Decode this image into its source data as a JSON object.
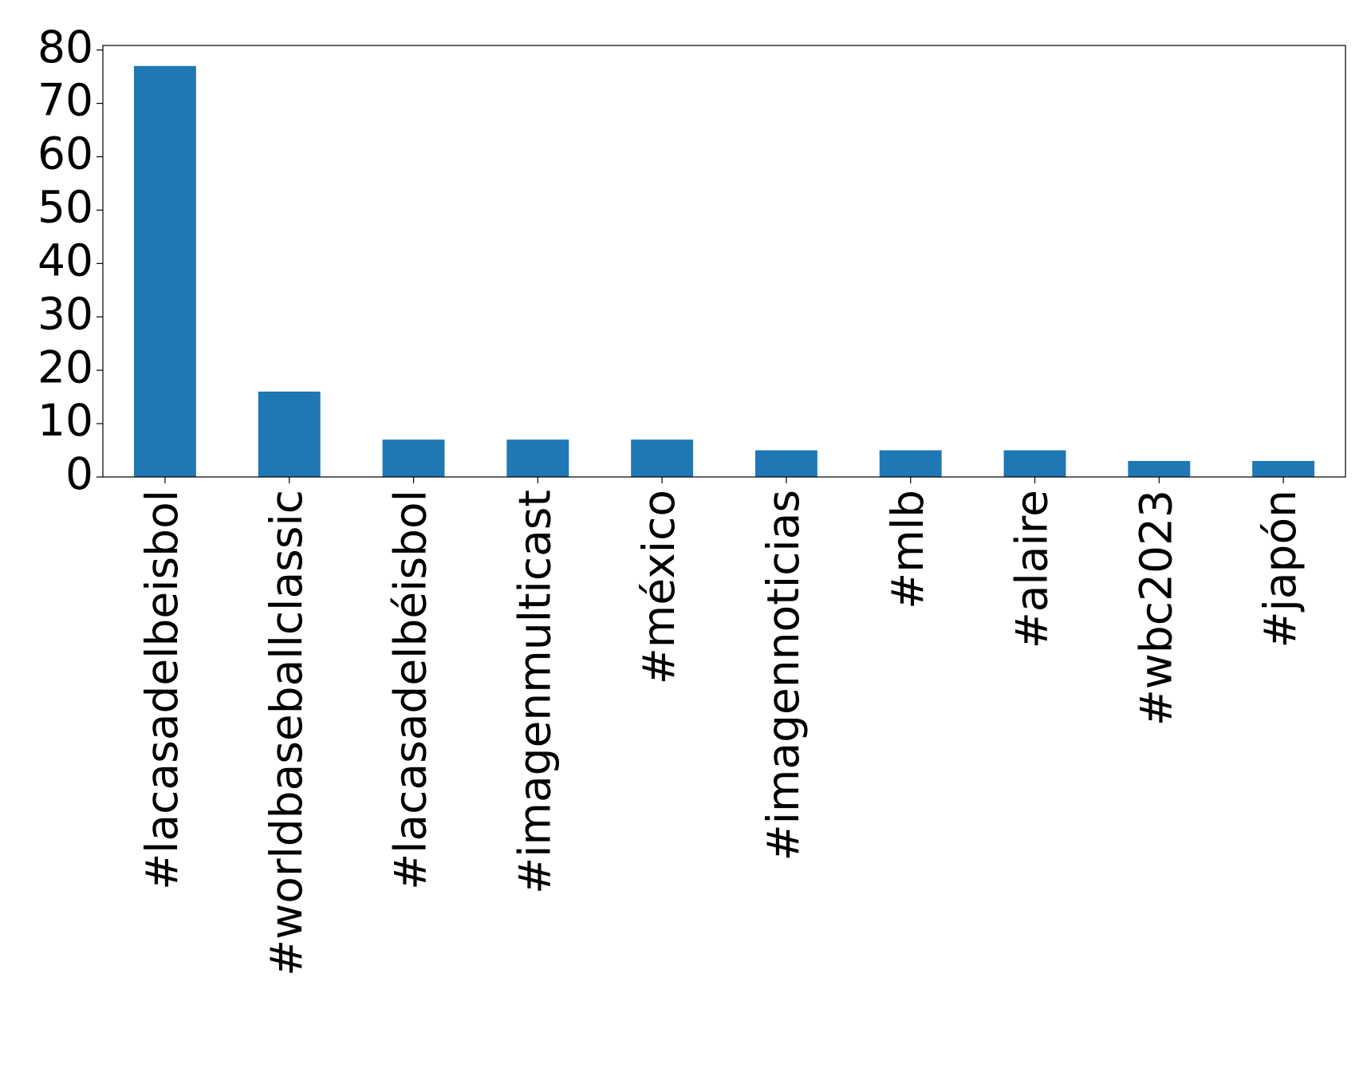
{
  "chart_data": {
    "type": "bar",
    "categories": [
      "#lacasadelbeisbol",
      "#worldbaseballclassic",
      "#lacasadelbéisbol",
      "#imagenmulticast",
      "#méxico",
      "#imagennoticias",
      "#mlb",
      "#alaire",
      "#wbc2023",
      "#japón"
    ],
    "values": [
      77,
      16,
      7,
      7,
      7,
      5,
      5,
      5,
      3,
      3
    ],
    "color": "#1f77b4",
    "ylim": [
      0,
      80.85
    ],
    "yticks": [
      0,
      10,
      20,
      30,
      40,
      50,
      60,
      70,
      80
    ],
    "grid": false
  }
}
